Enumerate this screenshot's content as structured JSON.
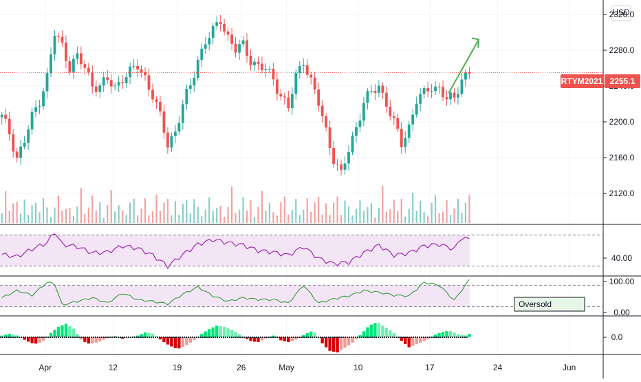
{
  "currency": "USD",
  "symbol_label": "RTYM2021",
  "last_price_label": "2255.1",
  "price_axis_ticks": [
    "2320.0",
    "2280.0",
    "2240.0",
    "2200.0",
    "2160.0",
    "2120.0"
  ],
  "rsi_axis_ticks": [
    "40.00"
  ],
  "stoch_axis_ticks": [
    "100.00",
    "0.00"
  ],
  "macd_axis_ticks": [
    "0.0"
  ],
  "annotation_text": "Oversold",
  "date_labels": [
    "Apr",
    "12",
    "19",
    "26",
    "May",
    "10",
    "17",
    "24",
    "Jun"
  ],
  "colors": {
    "up": "#26a69a",
    "down": "#ef5350",
    "last_price_bg": "#ef5350",
    "rsi_line": "#9c27b0",
    "rsi_band": "#f3e5f5",
    "stoch_line": "#43a047",
    "arrow": "#4caf50",
    "hist_pos": "#00c853",
    "hist_neg": "#d50000"
  },
  "chart_data": {
    "type": "candlestick",
    "ylim": [
      2090,
      2330
    ],
    "last_price": 2255.1,
    "price_path": [
      [
        0,
        2205
      ],
      [
        2,
        2188
      ],
      [
        4,
        2160
      ],
      [
        6,
        2178
      ],
      [
        8,
        2205
      ],
      [
        10,
        2225
      ],
      [
        12,
        2250
      ],
      [
        14,
        2298
      ],
      [
        16,
        2285
      ],
      [
        18,
        2262
      ],
      [
        20,
        2272
      ],
      [
        22,
        2260
      ],
      [
        24,
        2242
      ],
      [
        26,
        2240
      ],
      [
        28,
        2246
      ],
      [
        30,
        2238
      ],
      [
        32,
        2250
      ],
      [
        34,
        2255
      ],
      [
        36,
        2262
      ],
      [
        38,
        2250
      ],
      [
        40,
        2230
      ],
      [
        42,
        2205
      ],
      [
        44,
        2175
      ],
      [
        46,
        2190
      ],
      [
        48,
        2218
      ],
      [
        50,
        2240
      ],
      [
        52,
        2270
      ],
      [
        54,
        2290
      ],
      [
        56,
        2300
      ],
      [
        58,
        2315
      ],
      [
        60,
        2295
      ],
      [
        62,
        2280
      ],
      [
        64,
        2285
      ],
      [
        66,
        2270
      ],
      [
        68,
        2262
      ],
      [
        70,
        2258
      ],
      [
        72,
        2248
      ],
      [
        74,
        2230
      ],
      [
        76,
        2215
      ],
      [
        78,
        2250
      ],
      [
        80,
        2270
      ],
      [
        82,
        2245
      ],
      [
        84,
        2220
      ],
      [
        86,
        2190
      ],
      [
        88,
        2160
      ],
      [
        90,
        2140
      ],
      [
        92,
        2168
      ],
      [
        94,
        2195
      ],
      [
        96,
        2222
      ],
      [
        98,
        2232
      ],
      [
        100,
        2240
      ],
      [
        102,
        2222
      ],
      [
        104,
        2198
      ],
      [
        106,
        2175
      ],
      [
        108,
        2195
      ],
      [
        110,
        2225
      ],
      [
        112,
        2230
      ],
      [
        114,
        2240
      ],
      [
        116,
        2238
      ],
      [
        118,
        2225
      ],
      [
        120,
        2225
      ],
      [
        122,
        2250
      ],
      [
        124,
        2255
      ]
    ],
    "volume_rel": [
      0.4,
      0.9,
      0.3,
      0.5,
      0.7,
      0.3,
      0.6,
      0.2,
      0.5,
      0.8,
      0.3,
      0.6,
      0.4,
      0.2,
      0.5,
      0.7,
      0.3,
      0.4,
      0.6,
      0.2
    ],
    "rsi_ylim": [
      20,
      80
    ],
    "rsi_band": [
      30,
      70
    ],
    "rsi_path": [
      [
        0,
        45
      ],
      [
        4,
        42
      ],
      [
        8,
        52
      ],
      [
        12,
        60
      ],
      [
        14,
        74
      ],
      [
        16,
        58
      ],
      [
        20,
        55
      ],
      [
        24,
        47
      ],
      [
        28,
        48
      ],
      [
        32,
        56
      ],
      [
        36,
        53
      ],
      [
        40,
        44
      ],
      [
        44,
        30
      ],
      [
        48,
        45
      ],
      [
        52,
        58
      ],
      [
        56,
        64
      ],
      [
        60,
        60
      ],
      [
        64,
        57
      ],
      [
        68,
        50
      ],
      [
        72,
        48
      ],
      [
        76,
        44
      ],
      [
        80,
        55
      ],
      [
        84,
        40
      ],
      [
        88,
        33
      ],
      [
        92,
        35
      ],
      [
        96,
        47
      ],
      [
        100,
        57
      ],
      [
        104,
        44
      ],
      [
        108,
        47
      ],
      [
        112,
        56
      ],
      [
        116,
        58
      ],
      [
        120,
        52
      ],
      [
        122,
        67
      ],
      [
        124,
        64
      ]
    ],
    "stoch_ylim": [
      0,
      100
    ],
    "stoch_band": [
      20,
      80
    ],
    "stoch_path": [
      [
        0,
        45
      ],
      [
        4,
        65
      ],
      [
        8,
        52
      ],
      [
        12,
        88
      ],
      [
        14,
        84
      ],
      [
        16,
        25
      ],
      [
        20,
        35
      ],
      [
        24,
        45
      ],
      [
        28,
        30
      ],
      [
        32,
        58
      ],
      [
        36,
        40
      ],
      [
        40,
        35
      ],
      [
        44,
        28
      ],
      [
        48,
        55
      ],
      [
        52,
        75
      ],
      [
        56,
        50
      ],
      [
        60,
        35
      ],
      [
        64,
        45
      ],
      [
        68,
        40
      ],
      [
        72,
        40
      ],
      [
        76,
        30
      ],
      [
        80,
        80
      ],
      [
        84,
        30
      ],
      [
        88,
        42
      ],
      [
        92,
        50
      ],
      [
        96,
        65
      ],
      [
        100,
        60
      ],
      [
        104,
        52
      ],
      [
        108,
        50
      ],
      [
        112,
        88
      ],
      [
        116,
        80
      ],
      [
        120,
        38
      ],
      [
        124,
        95
      ]
    ],
    "macd_ylim": [
      -1,
      1
    ],
    "macd_hist": [
      0.1,
      0.2,
      0.1,
      -0.2,
      -0.4,
      -0.3,
      0.2,
      0.6,
      0.8,
      0.5,
      -0.2,
      -0.4,
      -0.3,
      -0.1,
      0.1,
      -0.1,
      0.0,
      0.1,
      0.3,
      0.2,
      -0.2,
      -0.5,
      -0.7,
      -0.5,
      -0.2,
      0.2,
      0.5,
      0.7,
      0.6,
      0.4,
      0.1,
      -0.2,
      -0.3,
      -0.1,
      0.1,
      -0.2,
      -0.3,
      -0.1,
      0.2,
      0.4,
      -0.3,
      -0.8,
      -0.9,
      -0.6,
      -0.3,
      0.2,
      0.7,
      0.9,
      0.6,
      0.3,
      -0.2,
      -0.6,
      -0.4,
      -0.2,
      0.1,
      0.3,
      0.4,
      0.2,
      0.1,
      0.3
    ],
    "date_positions": [
      12,
      30,
      47,
      64,
      76,
      95,
      114,
      132,
      151
    ],
    "x_total": 160
  }
}
